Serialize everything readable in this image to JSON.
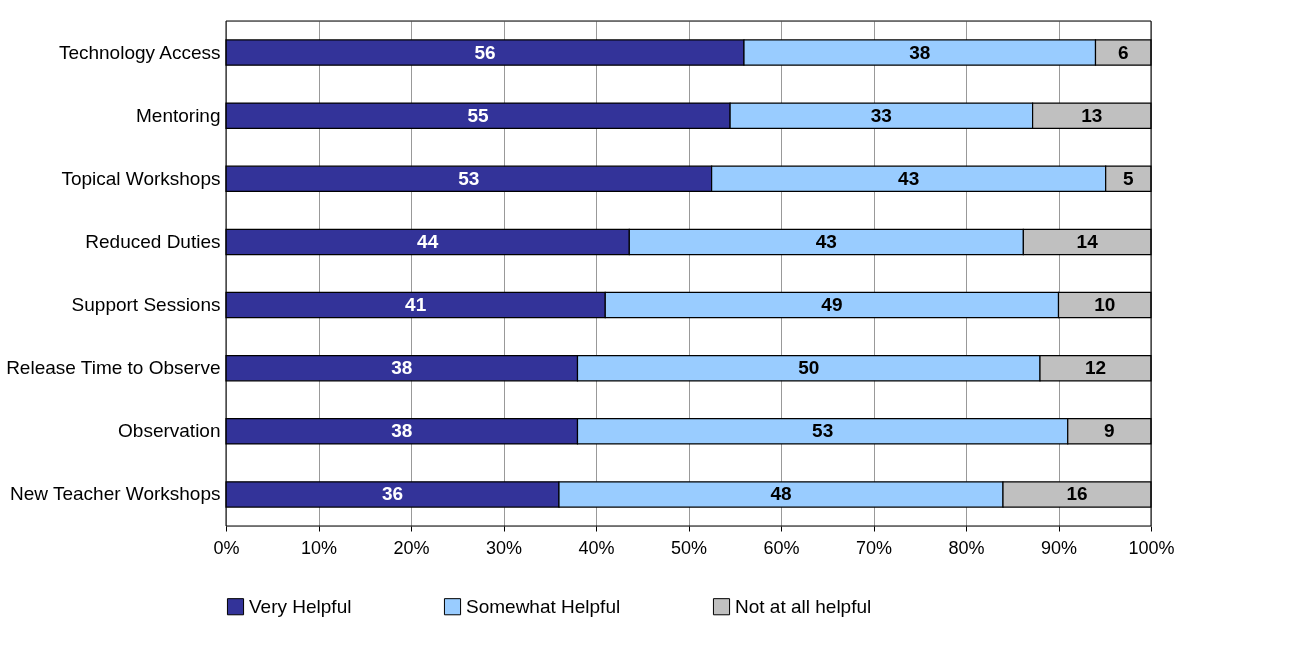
{
  "chart_data": {
    "type": "bar",
    "orientation": "horizontal",
    "stacked": true,
    "categories": [
      "Technology Access",
      "Mentoring",
      "Topical Workshops",
      "Reduced Duties",
      "Support Sessions",
      "Release Time to Observe",
      "Observation",
      "New Teacher Workshops"
    ],
    "series": [
      {
        "name": "Very Helpful",
        "color": "#333399",
        "values": [
          56,
          54.5,
          52.5,
          43.6,
          41,
          38,
          38,
          36
        ],
        "value_labels": [
          "56",
          "55",
          "53",
          "44",
          "41",
          "38",
          "38",
          "36"
        ]
      },
      {
        "name": "Somewhat Helpful",
        "color": "#99ccff",
        "values": [
          38,
          32.7,
          42.6,
          42.6,
          49,
          50,
          53,
          48
        ],
        "value_labels": [
          "38",
          "33",
          "43",
          "43",
          "49",
          "50",
          "53",
          "48"
        ]
      },
      {
        "name": "Not at all helpful",
        "color": "#c0c0c0",
        "values": [
          6,
          12.8,
          4.9,
          13.8,
          10,
          12,
          9,
          16
        ],
        "value_labels": [
          "6",
          "13",
          "5",
          "14",
          "10",
          "12",
          "9",
          "16"
        ]
      }
    ],
    "xlim": [
      0,
      100
    ],
    "xticks": [
      {
        "value": 0,
        "label": "0%"
      },
      {
        "value": 10,
        "label": "10%"
      },
      {
        "value": 20,
        "label": "20%"
      },
      {
        "value": 30,
        "label": "30%"
      },
      {
        "value": 40,
        "label": "40%"
      },
      {
        "value": 50,
        "label": "50%"
      },
      {
        "value": 60,
        "label": "60%"
      },
      {
        "value": 70,
        "label": "70%"
      },
      {
        "value": 80,
        "label": "80%"
      },
      {
        "value": 90,
        "label": "90%"
      },
      {
        "value": 100,
        "label": "100%"
      }
    ],
    "grid": "x",
    "legend": "bottom"
  }
}
